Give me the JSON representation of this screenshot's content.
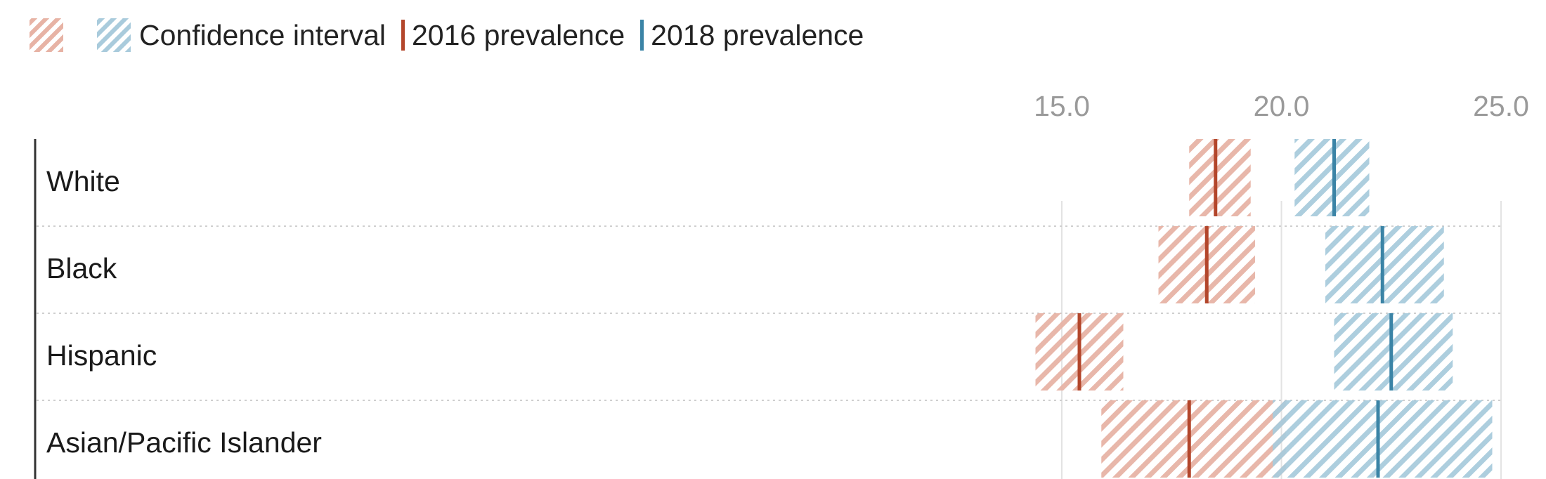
{
  "legend": {
    "ci_label": "Confidence interval",
    "series_2016_label": "2016 prevalence",
    "series_2018_label": "2018 prevalence"
  },
  "colors": {
    "ci_2016": "#e7b3a5",
    "ci_2018": "#a9cbdc",
    "line_2016": "#b3462b",
    "line_2018": "#3b84a6",
    "gridline": "#e3e3e3",
    "axis_text": "#9a9a9a"
  },
  "chart_data": {
    "type": "range",
    "title": "",
    "xlabel": "",
    "ylabel": "",
    "xlim": [
      5,
      25
    ],
    "x_ticks": [
      "15.0",
      "20.0",
      "25.0"
    ],
    "grid": true,
    "legend_position": "top-left",
    "categories": [
      "White",
      "Black",
      "Hispanic",
      "Asian/Pacific Islander"
    ],
    "series": [
      {
        "name": "2016 prevalence",
        "values": [
          18.5,
          18.3,
          15.4,
          17.9
        ],
        "ci_low": [
          17.9,
          17.2,
          14.4,
          15.9
        ],
        "ci_high": [
          19.3,
          19.4,
          16.4,
          20.1
        ]
      },
      {
        "name": "2018 prevalence",
        "values": [
          21.2,
          22.3,
          22.5,
          22.2
        ],
        "ci_low": [
          20.3,
          21.0,
          21.2,
          19.8
        ],
        "ci_high": [
          22.0,
          23.7,
          23.9,
          24.8
        ]
      }
    ]
  }
}
